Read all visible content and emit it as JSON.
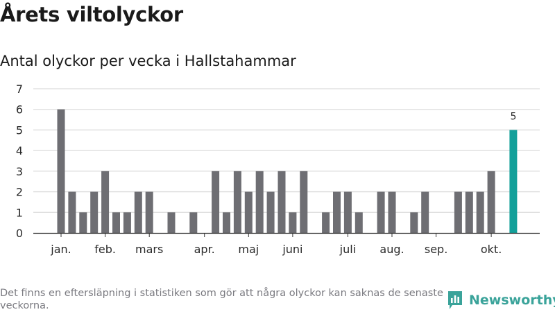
{
  "header": {
    "title": "Årets viltolyckor",
    "subtitle": "Antal olyckor per vecka i Hallstahammar"
  },
  "footnote": "Det finns en eftersläpning i statistiken som gör att några olyckor kan saknas de senaste veckorna.",
  "brand": {
    "name": "Newsworthy",
    "icon": "bar-chart-logo-icon",
    "color": "#3aa39a"
  },
  "colors": {
    "bar": "#6e6e73",
    "highlight": "#13a09a",
    "grid": "#dcdcdc",
    "axis": "#333333"
  },
  "chart_data": {
    "type": "bar",
    "title": "Antal olyckor per vecka i Hallstahammar",
    "xlabel": "",
    "ylabel": "",
    "ylim": [
      0,
      7
    ],
    "yticks": [
      0,
      1,
      2,
      3,
      4,
      5,
      6,
      7
    ],
    "grid": true,
    "weeks": [
      1,
      2,
      3,
      4,
      5,
      6,
      7,
      8,
      9,
      10,
      11,
      12,
      13,
      14,
      15,
      16,
      17,
      18,
      19,
      20,
      21,
      22,
      23,
      24,
      25,
      26,
      27,
      28,
      29,
      30,
      31,
      32,
      33,
      34,
      35,
      36,
      37,
      38,
      39,
      40,
      41,
      42
    ],
    "values": [
      6,
      2,
      1,
      2,
      3,
      1,
      1,
      2,
      2,
      0,
      1,
      0,
      1,
      0,
      3,
      1,
      3,
      2,
      3,
      2,
      3,
      1,
      3,
      0,
      1,
      2,
      2,
      1,
      0,
      2,
      2,
      0,
      1,
      2,
      0,
      0,
      2,
      2,
      2,
      3,
      0,
      5
    ],
    "highlight_index": 41,
    "data_labels": [
      {
        "index": 41,
        "text": "5"
      }
    ],
    "month_ticks": [
      {
        "label": "jan.",
        "week": 1
      },
      {
        "label": "feb.",
        "week": 5
      },
      {
        "label": "mars",
        "week": 9
      },
      {
        "label": "apr.",
        "week": 14
      },
      {
        "label": "maj",
        "week": 18
      },
      {
        "label": "juni",
        "week": 22
      },
      {
        "label": "juli",
        "week": 27
      },
      {
        "label": "aug.",
        "week": 31
      },
      {
        "label": "sep.",
        "week": 35
      },
      {
        "label": "okt.",
        "week": 40
      }
    ]
  }
}
